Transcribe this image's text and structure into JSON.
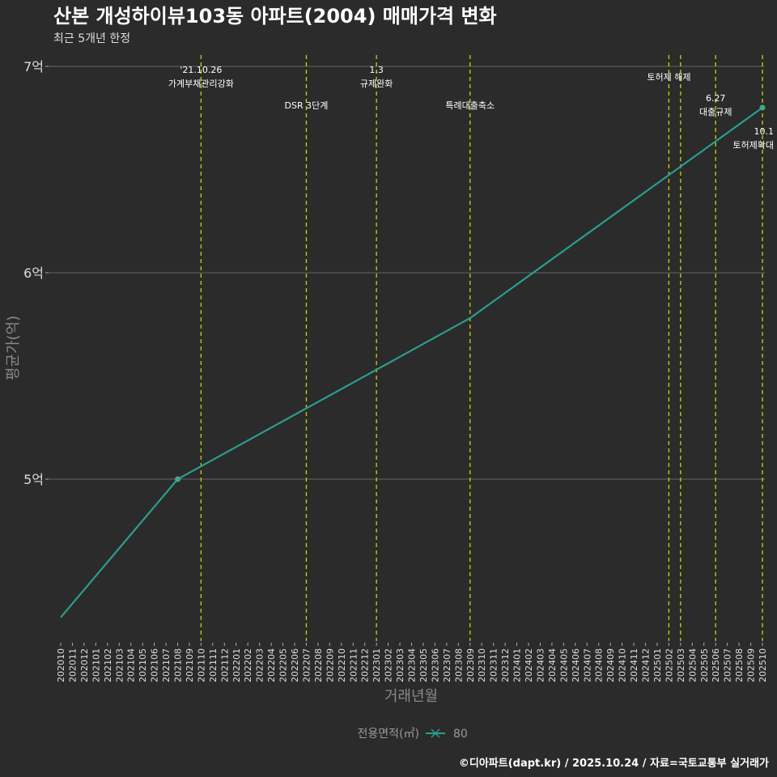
{
  "chart_data": {
    "type": "line",
    "title": "산본 개성하이뷰103동 아파트(2004) 매매가격 변화",
    "subtitle": "최근 5개년 한정",
    "xlabel": "거래년월",
    "ylabel": "평균가(억)",
    "yticks": [
      {
        "value": 5,
        "label": "5억"
      },
      {
        "value": 6,
        "label": "6억"
      },
      {
        "value": 7,
        "label": "7억"
      }
    ],
    "ylim": [
      4.33,
      7.0
    ],
    "x_start": "202010",
    "x_end": "202510",
    "grid": true,
    "legend": {
      "title": "전용면적(㎡)",
      "position": "bottom",
      "entries": [
        "80"
      ]
    },
    "series": [
      {
        "name": "80",
        "color": "#2a9d8f",
        "points": [
          {
            "x": "202010",
            "y": 4.33,
            "marker": false
          },
          {
            "x": "202108",
            "y": 5.0,
            "marker": true
          },
          {
            "x": "202309",
            "y": 5.78,
            "marker": false
          },
          {
            "x": "202510",
            "y": 6.8,
            "marker": true
          }
        ]
      }
    ],
    "annotations": [
      {
        "x": "202110",
        "lines": [
          "'21.10.26",
          "가계부채관리강화"
        ],
        "row": 0
      },
      {
        "x": "202207",
        "lines": [
          "DSR 3단계"
        ],
        "row": 2
      },
      {
        "x": "202301",
        "lines": [
          "1.3",
          "규제완화"
        ],
        "row": 0
      },
      {
        "x": "202309",
        "lines": [
          "특례대출축소"
        ],
        "row": 2
      },
      {
        "x": "202502",
        "lines": [
          "토허제 해제"
        ],
        "row": 1
      },
      {
        "x": "202503",
        "lines": [],
        "row": 1
      },
      {
        "x": "202506",
        "lines": [
          "6.27",
          "대출규제"
        ],
        "row": 3
      },
      {
        "x": "202510",
        "lines": [
          "10.1",
          "토허제확대"
        ],
        "row": 3
      }
    ]
  },
  "caption": "©디아파트(dapt.kr) / 2025.10.24 / 자료=국토교통부 실거래가",
  "colors": {
    "background": "#2b2b2b",
    "line": "#2a9d8f",
    "vline": "#c8d400",
    "grid": "#6a6a6a",
    "text": "#ffffff"
  }
}
